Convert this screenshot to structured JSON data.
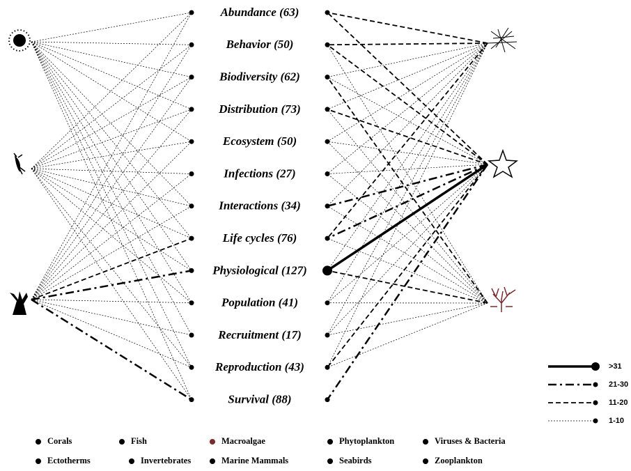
{
  "topics": [
    "Abundance (63)",
    "Behavior (50)",
    "Biodiversity (62)",
    "Distribution (73)",
    "Ecosystem (50)",
    "Infections (27)",
    "Interactions (34)",
    "Life cycles (76)",
    "Physiological (127)",
    "Population (41)",
    "Recruitment (17)",
    "Reproduction (43)",
    "Survival (88)"
  ],
  "line_legend": [
    ">31",
    "21-30",
    "11-20",
    "1-10"
  ],
  "legend": [
    [
      "Corals",
      "Fish",
      "Macroalgae",
      "Phytoplankton",
      "Viruses & Bacteria"
    ],
    [
      "Ectotherms",
      "Invertebrates",
      "Marine Mammals",
      "Seabirds",
      "Zooplankton"
    ]
  ]
}
